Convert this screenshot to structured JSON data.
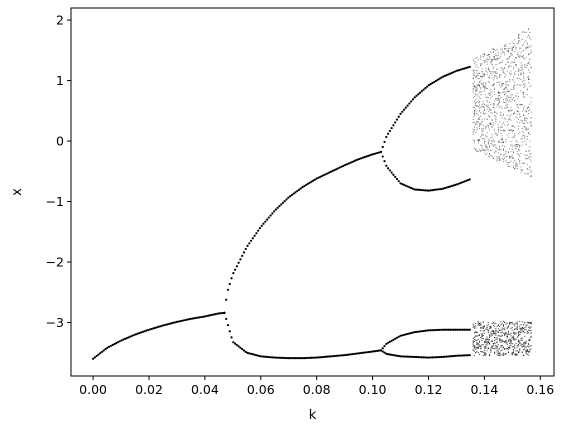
{
  "chart_data": {
    "type": "scatter",
    "title": "",
    "xlabel": "k",
    "ylabel": "x",
    "xlim": [
      -0.0079,
      0.1649
    ],
    "ylim": [
      -3.885,
      2.2
    ],
    "xticks": [
      0.0,
      0.02,
      0.04,
      0.06,
      0.08,
      0.1,
      0.12,
      0.14,
      0.16
    ],
    "xtick_labels": [
      "0.00",
      "0.02",
      "0.04",
      "0.06",
      "0.08",
      "0.10",
      "0.12",
      "0.14",
      "0.16"
    ],
    "yticks": [
      -3,
      -2,
      -1,
      0,
      1,
      2
    ],
    "ytick_labels": [
      "−3",
      "−2",
      "−1",
      "0",
      "1",
      "2"
    ],
    "grid": false,
    "legend": "none",
    "marker_color": "#000000",
    "series": [
      {
        "branch": "stable-lower",
        "x": [
          0.0,
          0.005,
          0.01,
          0.015,
          0.02,
          0.025,
          0.03,
          0.035,
          0.04,
          0.045,
          0.047
        ],
        "y": [
          -3.6,
          -3.42,
          -3.3,
          -3.2,
          -3.12,
          -3.05,
          -2.99,
          -2.94,
          -2.9,
          -2.85,
          -2.84
        ]
      },
      {
        "branch": "period-2-upper",
        "x": [
          0.047,
          0.048,
          0.05,
          0.055,
          0.06,
          0.065,
          0.07,
          0.075,
          0.08,
          0.085,
          0.09,
          0.095,
          0.1,
          0.103
        ],
        "y": [
          -2.84,
          -2.5,
          -2.2,
          -1.75,
          -1.42,
          -1.15,
          -0.93,
          -0.76,
          -0.62,
          -0.51,
          -0.4,
          -0.3,
          -0.22,
          -0.18
        ]
      },
      {
        "branch": "period-2-lower",
        "x": [
          0.047,
          0.05,
          0.055,
          0.06,
          0.065,
          0.07,
          0.075,
          0.08,
          0.085,
          0.09,
          0.095,
          0.1,
          0.103
        ],
        "y": [
          -2.84,
          -3.32,
          -3.5,
          -3.56,
          -3.58,
          -3.59,
          -3.59,
          -3.58,
          -3.56,
          -3.54,
          -3.51,
          -3.48,
          -3.46
        ]
      },
      {
        "branch": "period-4-a",
        "x": [
          0.103,
          0.105,
          0.11,
          0.115,
          0.12,
          0.125,
          0.13,
          0.135
        ],
        "y": [
          -0.18,
          0.08,
          0.45,
          0.72,
          0.92,
          1.06,
          1.16,
          1.23
        ]
      },
      {
        "branch": "period-4-b",
        "x": [
          0.103,
          0.105,
          0.11,
          0.115,
          0.12,
          0.125,
          0.13,
          0.135
        ],
        "y": [
          -0.18,
          -0.42,
          -0.7,
          -0.8,
          -0.82,
          -0.79,
          -0.72,
          -0.63
        ]
      },
      {
        "branch": "period-4-c",
        "x": [
          0.103,
          0.105,
          0.11,
          0.115,
          0.12,
          0.125,
          0.13,
          0.135
        ],
        "y": [
          -3.46,
          -3.35,
          -3.22,
          -3.16,
          -3.13,
          -3.12,
          -3.12,
          -3.12
        ]
      },
      {
        "branch": "period-4-d",
        "x": [
          0.103,
          0.105,
          0.11,
          0.115,
          0.12,
          0.125,
          0.13,
          0.135
        ],
        "y": [
          -3.46,
          -3.52,
          -3.56,
          -3.57,
          -3.58,
          -3.57,
          -3.55,
          -3.54
        ]
      }
    ],
    "chaotic_region": {
      "x_range": [
        0.136,
        0.157
      ],
      "upper_band": {
        "y_min": -0.6,
        "y_max": 1.9
      },
      "lower_band": {
        "y_min": -3.55,
        "y_max": -2.98
      }
    }
  }
}
